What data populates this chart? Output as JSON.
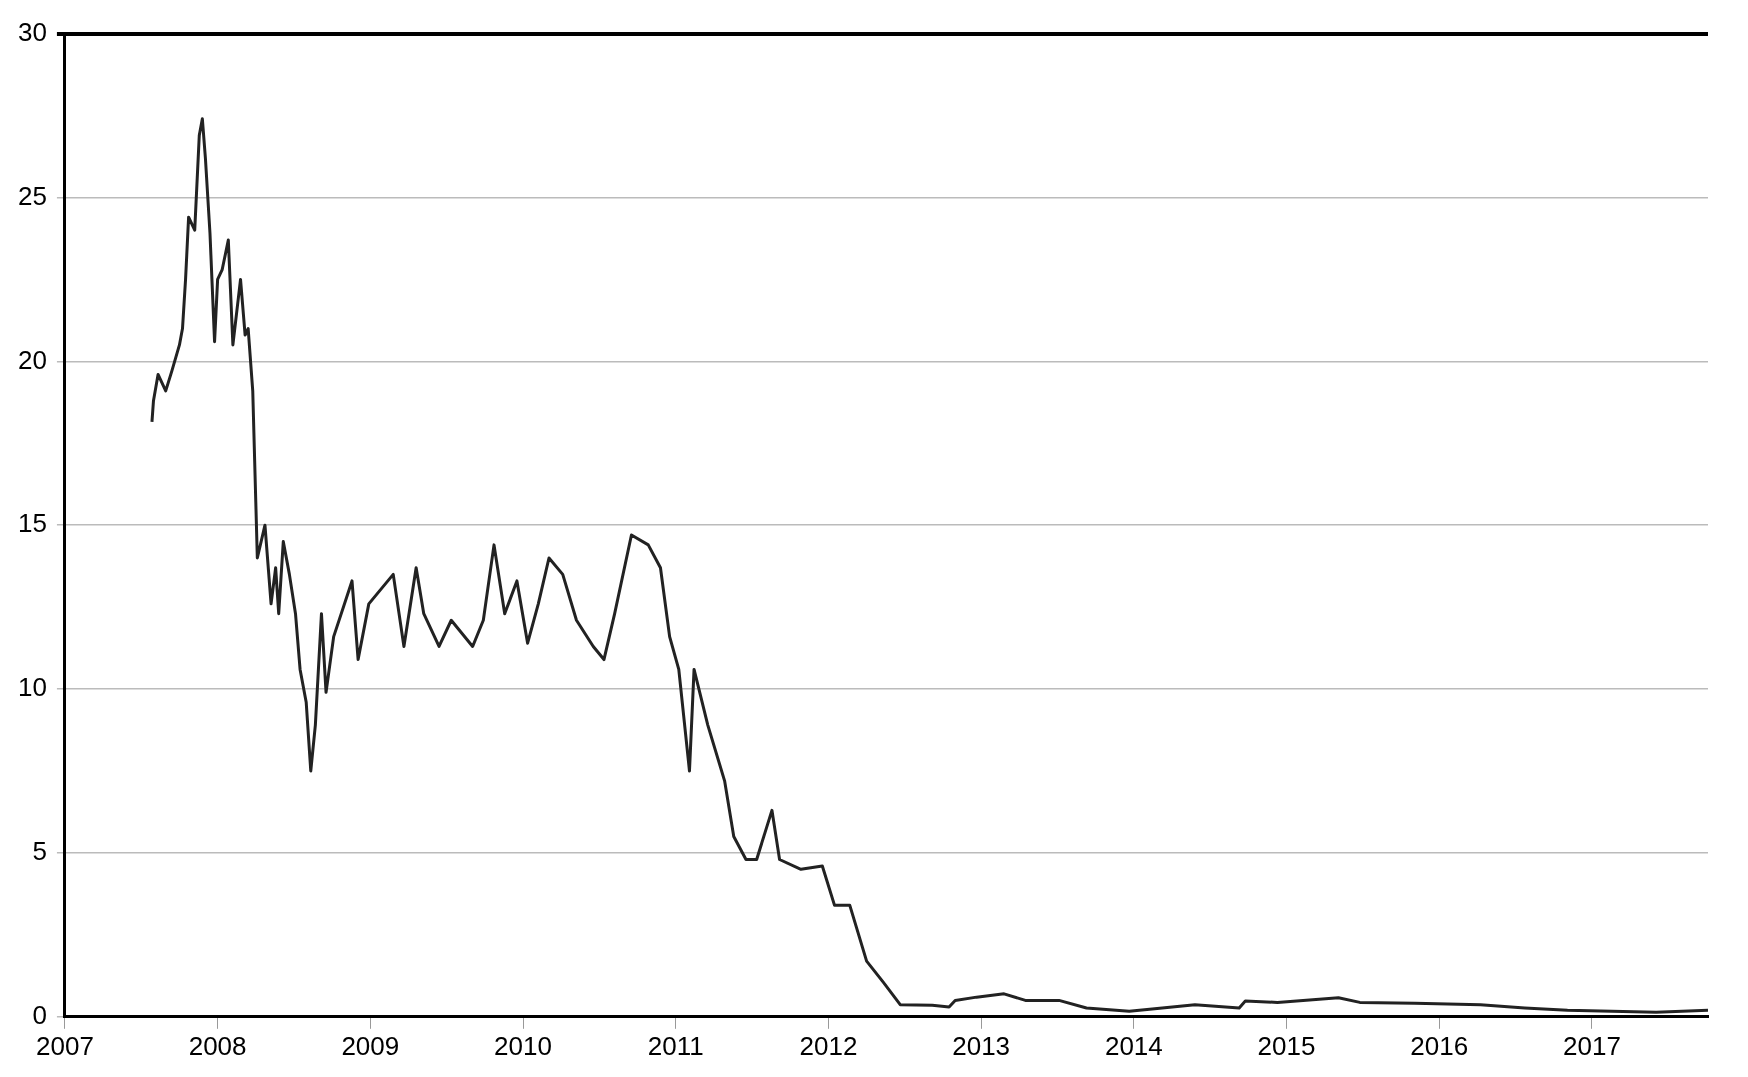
{
  "chart_data": {
    "type": "line",
    "x": [
      2007.57,
      2007.58,
      2007.61,
      2007.66,
      2007.7,
      2007.75,
      2007.77,
      2007.79,
      2007.81,
      2007.85,
      2007.88,
      2007.9,
      2007.92,
      2007.95,
      2007.98,
      2008.0,
      2008.03,
      2008.07,
      2008.1,
      2008.15,
      2008.18,
      2008.2,
      2008.23,
      2008.25,
      2008.26,
      2008.31,
      2008.35,
      2008.38,
      2008.4,
      2008.43,
      2008.47,
      2008.51,
      2008.54,
      2008.58,
      2008.61,
      2008.64,
      2008.68,
      2008.71,
      2008.76,
      2008.88,
      2008.92,
      2008.99,
      2009.15,
      2009.22,
      2009.3,
      2009.35,
      2009.45,
      2009.53,
      2009.67,
      2009.74,
      2009.81,
      2009.88,
      2009.96,
      2010.03,
      2010.1,
      2010.17,
      2010.26,
      2010.35,
      2010.46,
      2010.53,
      2010.6,
      2010.71,
      2010.82,
      2010.9,
      2010.96,
      2011.02,
      2011.09,
      2011.12,
      2011.21,
      2011.32,
      2011.38,
      2011.46,
      2011.53,
      2011.63,
      2011.68,
      2011.82,
      2011.96,
      2012.04,
      2012.14,
      2012.25,
      2012.36,
      2012.47,
      2012.68,
      2012.79,
      2012.83,
      2012.97,
      2013.15,
      2013.29,
      2013.51,
      2013.69,
      2013.97,
      2014.12,
      2014.4,
      2014.69,
      2014.73,
      2014.94,
      2015.34,
      2015.48,
      2015.84,
      2016.27,
      2016.56,
      2016.84,
      2017.42,
      2017.76
    ],
    "series": [
      {
        "color": "#222222",
        "values": [
          18.15,
          18.8,
          19.6,
          19.1,
          19.7,
          20.5,
          21.0,
          22.5,
          24.4,
          24.0,
          26.9,
          27.4,
          26.2,
          23.9,
          20.6,
          22.5,
          22.8,
          23.7,
          20.5,
          22.5,
          20.8,
          21.0,
          19.1,
          15.7,
          14.0,
          15.0,
          12.6,
          13.7,
          12.3,
          14.5,
          13.5,
          12.3,
          10.6,
          9.6,
          7.5,
          8.9,
          12.3,
          9.9,
          11.6,
          13.3,
          10.9,
          12.6,
          13.5,
          11.3,
          13.7,
          12.3,
          11.3,
          12.1,
          11.3,
          12.1,
          14.4,
          12.3,
          13.3,
          11.4,
          12.6,
          14.0,
          13.5,
          12.1,
          11.3,
          10.9,
          12.3,
          14.7,
          14.4,
          13.7,
          11.6,
          10.6,
          7.5,
          10.6,
          8.9,
          7.2,
          5.5,
          4.8,
          4.8,
          6.3,
          4.8,
          4.5,
          4.6,
          3.4,
          3.4,
          1.7,
          1.05,
          0.37,
          0.35,
          0.3,
          0.5,
          0.6,
          0.7,
          0.5,
          0.5,
          0.27,
          0.17,
          0.24,
          0.37,
          0.27,
          0.48,
          0.44,
          0.58,
          0.44,
          0.41,
          0.37,
          0.27,
          0.2,
          0.14,
          0.2
        ]
      }
    ],
    "xlim": [
      2007,
      2017.76
    ],
    "xticks": [
      2007,
      2008,
      2009,
      2010,
      2011,
      2012,
      2013,
      2014,
      2015,
      2016,
      2017
    ],
    "ylim": [
      0,
      30
    ],
    "yticks": [
      0,
      5,
      10,
      15,
      20,
      25,
      30
    ],
    "grid": "y",
    "legend": false,
    "marker": "none",
    "line_style": "solid"
  }
}
